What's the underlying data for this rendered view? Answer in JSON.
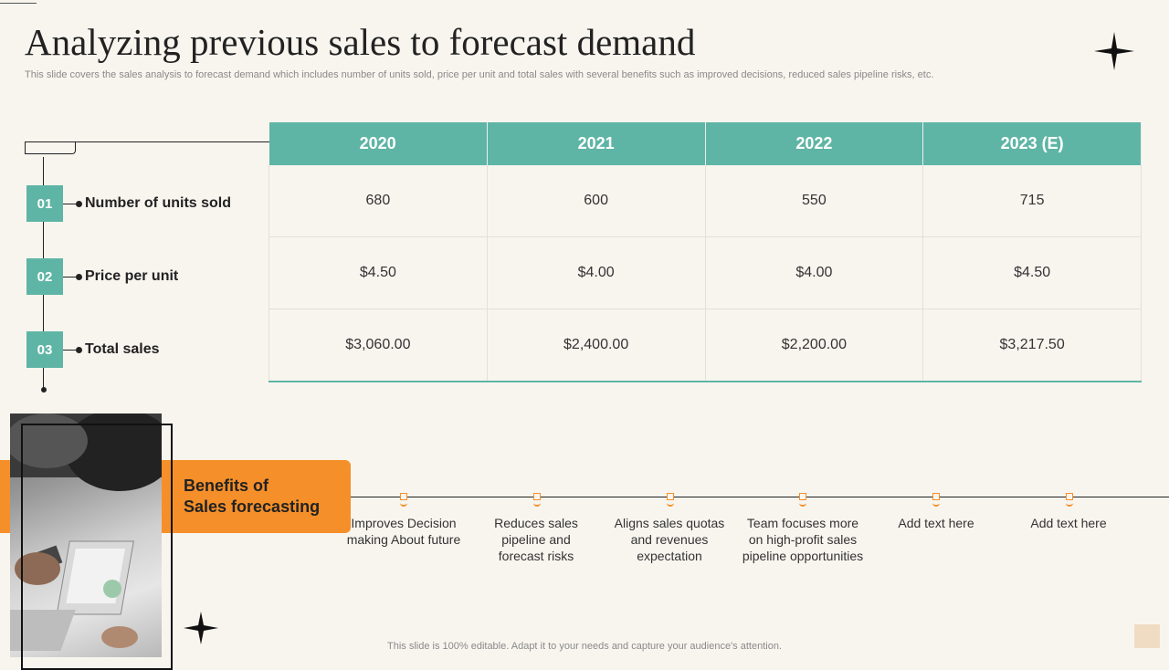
{
  "header": {
    "title": "Analyzing previous sales to forecast demand",
    "subtitle": "This slide covers the sales analysis to forecast demand which includes number of units sold, price per unit and total sales with several benefits such as improved decisions, reduced sales pipeline risks, etc."
  },
  "table": {
    "columns": [
      "2020",
      "2021",
      "2022",
      "2023 (E)"
    ],
    "rows": [
      {
        "num": "01",
        "label": "Number of units sold",
        "values": [
          "680",
          "600",
          "550",
          "715"
        ]
      },
      {
        "num": "02",
        "label": "Price per unit",
        "values": [
          "$4.50",
          "$4.00",
          "$4.00",
          "$4.50"
        ]
      },
      {
        "num": "03",
        "label": "Total sales",
        "values": [
          "$3,060.00",
          "$2,400.00",
          "$2,200.00",
          "$3,217.50"
        ]
      }
    ]
  },
  "benefits": {
    "title_line1": "Benefits of",
    "title_line2": "Sales forecasting",
    "items": [
      "Improves Decision making About future",
      "Reduces sales pipeline and forecast risks",
      "Aligns sales quotas and revenues expectation",
      "Team focuses more on high-profit sales pipeline opportunities",
      "Add text here",
      "Add text here"
    ]
  },
  "footer": {
    "note": "This slide is 100% editable. Adapt it to your needs and capture your audience's attention."
  },
  "colors": {
    "teal": "#5fb5a5",
    "orange": "#f58f2a",
    "background": "#f8f5ef"
  },
  "icons": [
    "four-point-star-icon",
    "four-point-star-icon"
  ]
}
